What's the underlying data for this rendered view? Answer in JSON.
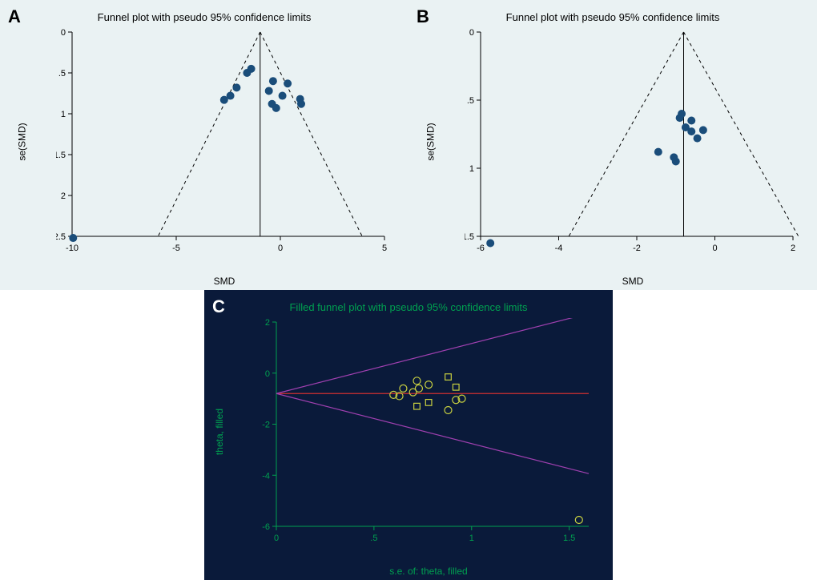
{
  "panel_a": {
    "label": "A",
    "title": "Funnel plot with pseudo 95% confidence limits",
    "type": "scatter",
    "xlabel": "SMD",
    "ylabel": "se(SMD)",
    "xlim": [
      -10,
      5
    ],
    "ylim_inverted": [
      0,
      2.5
    ],
    "xticks": [
      -10,
      -5,
      0,
      5
    ],
    "yticks": [
      0,
      0.5,
      1,
      1.5,
      2,
      2.5
    ],
    "ytick_labels": [
      "0",
      ".5",
      "1",
      "1.5",
      "2",
      "2.5"
    ],
    "background_color": "#eaf2f3",
    "marker_color": "#1a4d7a",
    "marker_size": 5,
    "center_line_x": -0.97,
    "funnel_slope": 1.96,
    "funnel_color": "#000000",
    "funnel_dash": "4,4",
    "points": [
      {
        "x": -9.95,
        "y": 2.52
      },
      {
        "x": -2.7,
        "y": 0.83
      },
      {
        "x": -2.4,
        "y": 0.78
      },
      {
        "x": -2.1,
        "y": 0.68
      },
      {
        "x": -1.6,
        "y": 0.5
      },
      {
        "x": -1.4,
        "y": 0.45
      },
      {
        "x": -0.55,
        "y": 0.72
      },
      {
        "x": -0.35,
        "y": 0.6
      },
      {
        "x": -0.4,
        "y": 0.88
      },
      {
        "x": -0.2,
        "y": 0.93
      },
      {
        "x": 0.1,
        "y": 0.78
      },
      {
        "x": 0.35,
        "y": 0.63
      },
      {
        "x": 0.95,
        "y": 0.82
      },
      {
        "x": 1.0,
        "y": 0.88
      }
    ]
  },
  "panel_b": {
    "label": "B",
    "title": "Funnel plot with pseudo 95% confidence limits",
    "type": "scatter",
    "xlabel": "SMD",
    "ylabel": "se(SMD)",
    "xlim": [
      -6,
      2
    ],
    "ylim_inverted": [
      0,
      1.5
    ],
    "xticks": [
      -6,
      -4,
      -2,
      0,
      2
    ],
    "yticks": [
      0,
      0.5,
      1,
      1.5
    ],
    "ytick_labels": [
      "0",
      ".5",
      "1",
      "1.5"
    ],
    "background_color": "#eaf2f3",
    "marker_color": "#1a4d7a",
    "marker_size": 5,
    "center_line_x": -0.8,
    "funnel_slope": 1.96,
    "funnel_color": "#000000",
    "funnel_dash": "4,4",
    "points": [
      {
        "x": -5.75,
        "y": 1.55
      },
      {
        "x": -1.45,
        "y": 0.88
      },
      {
        "x": -1.05,
        "y": 0.92
      },
      {
        "x": -1.0,
        "y": 0.95
      },
      {
        "x": -0.9,
        "y": 0.63
      },
      {
        "x": -0.85,
        "y": 0.6
      },
      {
        "x": -0.75,
        "y": 0.7
      },
      {
        "x": -0.6,
        "y": 0.73
      },
      {
        "x": -0.6,
        "y": 0.65
      },
      {
        "x": -0.45,
        "y": 0.78
      },
      {
        "x": -0.3,
        "y": 0.72
      }
    ]
  },
  "panel_c": {
    "label": "C",
    "title": "Filled funnel plot with pseudo 95% confidence limits",
    "type": "scatter",
    "xlabel": "s.e. of: theta, filled",
    "ylabel": "theta, filled",
    "xlim": [
      0,
      1.6
    ],
    "ylim": [
      -6,
      2
    ],
    "xticks": [
      0,
      0.5,
      1,
      1.5
    ],
    "xtick_labels": [
      "0",
      ".5",
      "1",
      "1.5"
    ],
    "yticks": [
      -6,
      -4,
      -2,
      0,
      2
    ],
    "background_color": "#0a1a3a",
    "marker_stroke": "#c8d040",
    "marker_fill": "none",
    "square_stroke": "#c8d040",
    "square_fill": "none",
    "marker_size": 4.5,
    "center_line_y": -0.8,
    "center_line_color": "#d03030",
    "funnel_color": "#a040b0",
    "points": [
      {
        "x": 0.88,
        "y": -1.45
      },
      {
        "x": 0.92,
        "y": -1.05
      },
      {
        "x": 0.95,
        "y": -1.0
      },
      {
        "x": 0.63,
        "y": -0.9
      },
      {
        "x": 0.6,
        "y": -0.85
      },
      {
        "x": 0.7,
        "y": -0.75
      },
      {
        "x": 0.73,
        "y": -0.6
      },
      {
        "x": 0.65,
        "y": -0.6
      },
      {
        "x": 0.78,
        "y": -0.45
      },
      {
        "x": 0.72,
        "y": -0.3
      },
      {
        "x": 1.55,
        "y": -5.75
      }
    ],
    "filled_points": [
      {
        "x": 0.88,
        "y": -0.15
      },
      {
        "x": 0.92,
        "y": -0.55
      },
      {
        "x": 0.78,
        "y": -1.15
      },
      {
        "x": 0.72,
        "y": -1.3
      }
    ]
  }
}
